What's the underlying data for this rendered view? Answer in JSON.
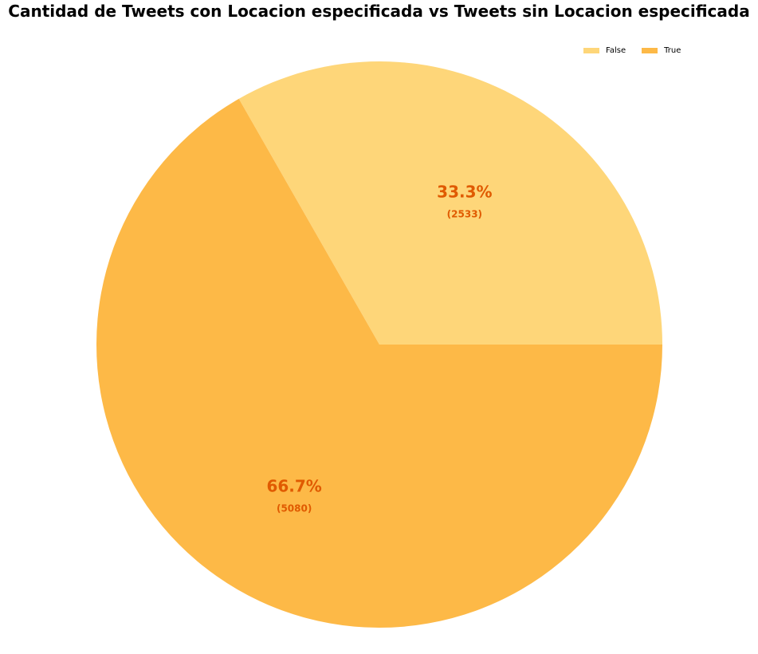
{
  "chart_data": {
    "type": "pie",
    "title": "Cantidad de Tweets con Locacion especificada vs Tweets sin Locacion especificada",
    "slices": [
      {
        "label": "False",
        "value": 2533,
        "percent_label": "33.3%",
        "count_label": "(2533)",
        "color": "#FED679"
      },
      {
        "label": "True",
        "value": 5080,
        "percent_label": "66.7%",
        "count_label": "(5080)",
        "color": "#FDB947"
      }
    ],
    "label_color": "#E05A00",
    "legend_position": "top-right"
  }
}
